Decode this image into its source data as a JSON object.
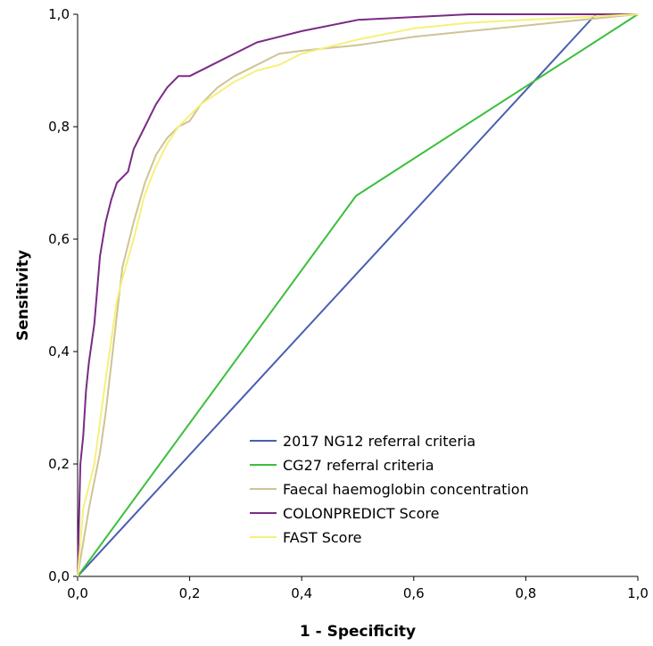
{
  "chart_data": {
    "type": "line",
    "title": "",
    "xlabel": "1 - Specificity",
    "ylabel": "Sensitivity",
    "xlim": [
      0,
      1
    ],
    "ylim": [
      0,
      1
    ],
    "x_ticks": [
      "0,0",
      "0,2",
      "0,4",
      "0,6",
      "0,8",
      "1,0"
    ],
    "y_ticks": [
      "0,0",
      "0,2",
      "0,4",
      "0,6",
      "0,8",
      "1,0"
    ],
    "grid": false,
    "legend_position": "bottom-right",
    "series": [
      {
        "name": "2017 NG12 referral criteria",
        "color": "#4a5fb0",
        "x": [
          0,
          0.925,
          1
        ],
        "y": [
          0,
          1,
          1
        ]
      },
      {
        "name": "CG27 referral criteria",
        "color": "#3cbf3c",
        "x": [
          0,
          0.497,
          1
        ],
        "y": [
          0,
          0.677,
          1
        ]
      },
      {
        "name": "Faecal haemoglobin concentration",
        "color": "#cfc397",
        "x": [
          0,
          0.02,
          0.04,
          0.05,
          0.065,
          0.08,
          0.1,
          0.12,
          0.14,
          0.16,
          0.18,
          0.2,
          0.22,
          0.25,
          0.28,
          0.32,
          0.36,
          0.4,
          0.5,
          0.6,
          0.7,
          0.8,
          0.9,
          1.0
        ],
        "y": [
          0,
          0.12,
          0.22,
          0.29,
          0.42,
          0.55,
          0.63,
          0.7,
          0.75,
          0.78,
          0.8,
          0.81,
          0.84,
          0.87,
          0.89,
          0.91,
          0.93,
          0.935,
          0.945,
          0.96,
          0.97,
          0.98,
          0.99,
          1.0
        ]
      },
      {
        "name": "COLONPREDICT Score",
        "color": "#7b2b86",
        "x": [
          0,
          0.005,
          0.01,
          0.015,
          0.02,
          0.03,
          0.04,
          0.05,
          0.06,
          0.07,
          0.09,
          0.1,
          0.12,
          0.14,
          0.16,
          0.18,
          0.2,
          0.24,
          0.28,
          0.32,
          0.36,
          0.4,
          0.5,
          0.6,
          0.7,
          0.8,
          1.0
        ],
        "y": [
          0,
          0.2,
          0.25,
          0.33,
          0.38,
          0.45,
          0.57,
          0.63,
          0.67,
          0.7,
          0.72,
          0.76,
          0.8,
          0.84,
          0.87,
          0.89,
          0.89,
          0.91,
          0.93,
          0.95,
          0.96,
          0.97,
          0.99,
          0.995,
          1.0,
          1.0,
          1.0
        ]
      },
      {
        "name": "FAST Score",
        "color": "#f6f07a",
        "x": [
          0,
          0.01,
          0.03,
          0.05,
          0.07,
          0.08,
          0.1,
          0.12,
          0.14,
          0.16,
          0.18,
          0.2,
          0.22,
          0.25,
          0.28,
          0.32,
          0.36,
          0.4,
          0.5,
          0.6,
          0.7,
          0.8,
          0.9,
          1.0
        ],
        "y": [
          0,
          0.12,
          0.2,
          0.35,
          0.49,
          0.53,
          0.6,
          0.68,
          0.73,
          0.77,
          0.8,
          0.82,
          0.84,
          0.86,
          0.88,
          0.9,
          0.91,
          0.93,
          0.955,
          0.975,
          0.985,
          0.99,
          0.995,
          1.0
        ]
      }
    ]
  }
}
